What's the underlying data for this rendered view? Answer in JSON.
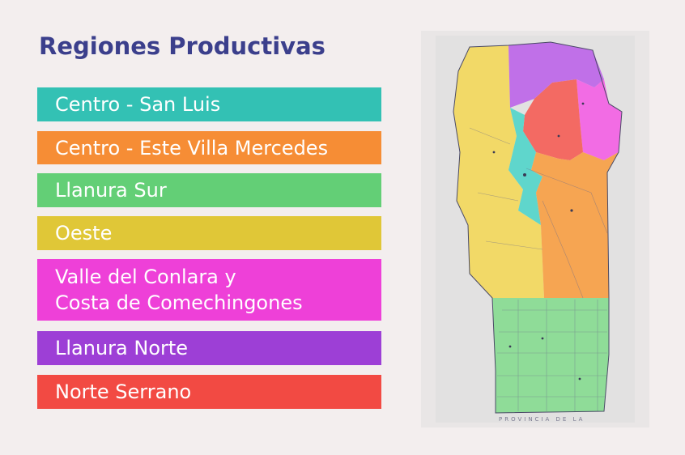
{
  "title": "Regiones Productivas",
  "legend": [
    {
      "label": "Centro - San Luis",
      "color": "#33c1b4"
    },
    {
      "label": "Centro - Este Villa Mercedes",
      "color": "#f68d35"
    },
    {
      "label": "Llanura Sur",
      "color": "#63cf76"
    },
    {
      "label": "Oeste",
      "color": "#e0c737"
    },
    {
      "label_line1": "Valle del Conlara y",
      "label_line2": "Costa de Comechingones",
      "color": "#ee40d8"
    },
    {
      "label": "Llanura Norte",
      "color": "#9d3fd6"
    },
    {
      "label": "Norte Serrano",
      "color": "#f24a43"
    }
  ],
  "map": {
    "bottom_label": "PROVINCIA DE LA",
    "region_colors": {
      "oeste": "#f2d967",
      "llanura_norte": "#c070e8",
      "norte_serrano": "#f36a63",
      "valle_conlara": "#f26ce4",
      "centro_san_luis": "#5fd6cc",
      "centro_este": "#f6a552",
      "llanura_sur": "#8fdc98"
    }
  }
}
